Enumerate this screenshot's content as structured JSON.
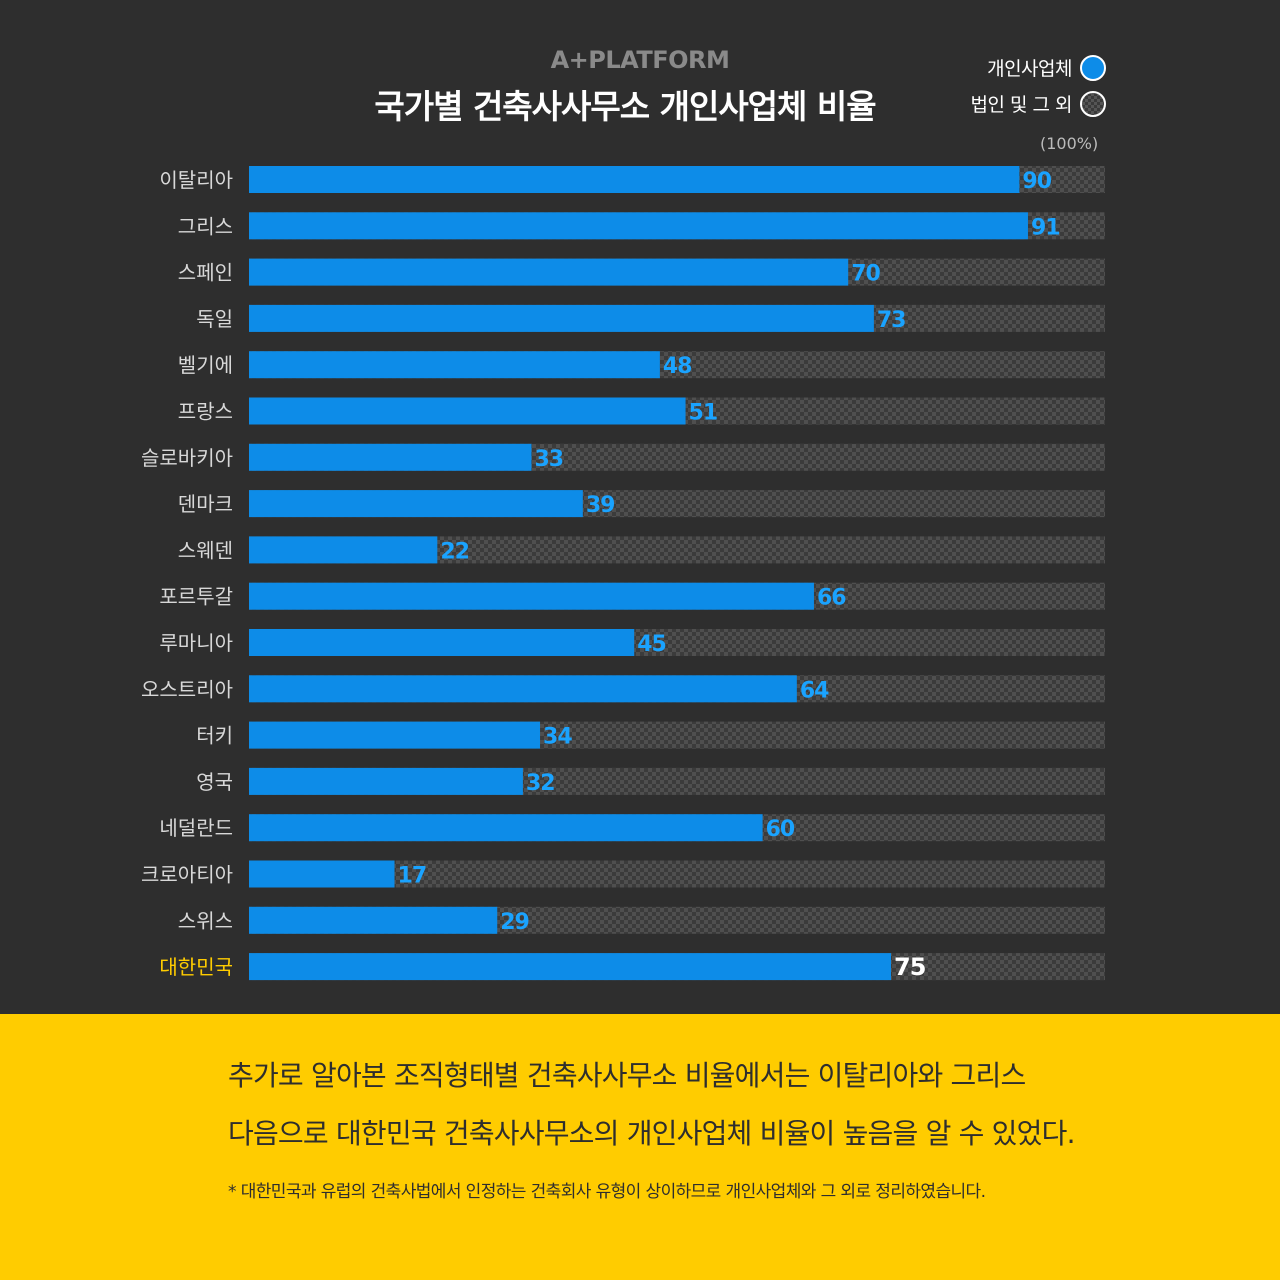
{
  "brand": "A+PLATFORM",
  "legend": {
    "individual": "개인사업체",
    "other": "법인 및 그 외"
  },
  "unit_label": "(100%)",
  "colors": {
    "background": "#2e2e2e",
    "bar": "#0d8ce8",
    "value_text": "#1aa3ff",
    "highlight_label": "#ffcc00",
    "highlight_value": "#ffffff",
    "footer_bg": "#ffcc00"
  },
  "chart_data": {
    "type": "bar",
    "orientation": "horizontal",
    "stacked_to": 100,
    "title": "국가별 건축사사무소 개인사업체 비율",
    "categories": [
      "이탈리아",
      "그리스",
      "스페인",
      "독일",
      "벨기에",
      "프랑스",
      "슬로바키아",
      "덴마크",
      "스웨덴",
      "포르투갈",
      "루마니아",
      "오스트리아",
      "터키",
      "영국",
      "네덜란드",
      "크로아티아",
      "스위스",
      "대한민국"
    ],
    "series": [
      {
        "name": "개인사업체",
        "values": [
          90,
          91,
          70,
          73,
          48,
          51,
          33,
          39,
          22,
          66,
          45,
          64,
          34,
          32,
          60,
          17,
          29,
          75
        ]
      },
      {
        "name": "법인 및 그 외",
        "values": [
          10,
          9,
          30,
          27,
          52,
          49,
          67,
          61,
          78,
          34,
          55,
          36,
          66,
          68,
          40,
          83,
          71,
          25
        ]
      }
    ],
    "highlight": "대한민국",
    "xlim": [
      0,
      100
    ]
  },
  "footer": {
    "line1": "추가로 알아본 조직형태별 건축사사무소 비율에서는 이탈리아와 그리스",
    "line2": "다음으로 대한민국 건축사사무소의 개인사업체 비율이 높음을 알 수 있었다.",
    "note": "* 대한민국과 유럽의 건축사법에서 인정하는 건축회사 유형이 상이하므로 개인사업체와 그 외로 정리하였습니다."
  }
}
